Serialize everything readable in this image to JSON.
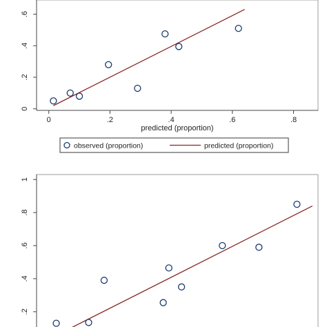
{
  "chart_data": [
    {
      "type": "scatter",
      "xlabel": "predicted (proportion)",
      "ylabel": "",
      "xlim": [
        -0.04,
        0.88
      ],
      "ylim": [
        -0.01,
        0.69
      ],
      "xticks": [
        0,
        0.2,
        0.4,
        0.6,
        0.8
      ],
      "xtick_labels": [
        "0",
        ".2",
        ".4",
        ".6",
        ".8"
      ],
      "yticks": [
        0,
        0.2,
        0.4,
        0.6
      ],
      "ytick_labels": [
        "0",
        ".2",
        ".4",
        ".6"
      ],
      "grid": false,
      "series": [
        {
          "name": "observed (proportion)",
          "kind": "scatter",
          "marker": "hollow-circle",
          "color": "#1a3a6b",
          "x": [
            0.015,
            0.07,
            0.1,
            0.195,
            0.29,
            0.38,
            0.425,
            0.62
          ],
          "y": [
            0.05,
            0.1,
            0.08,
            0.28,
            0.13,
            0.475,
            0.395,
            0.51
          ]
        },
        {
          "name": "predicted (proportion)",
          "kind": "line",
          "color": "#8b2323",
          "x": [
            0.015,
            0.64
          ],
          "y": [
            0.02,
            0.63
          ]
        }
      ],
      "legend": {
        "placement": "bottom",
        "entries": [
          "observed (proportion)",
          "predicted (proportion)"
        ]
      }
    },
    {
      "type": "scatter",
      "xlabel": "",
      "ylabel": "",
      "xlim": [
        0.0,
        1.0
      ],
      "ylim": [
        0.07,
        1.03
      ],
      "yticks": [
        0.2,
        0.4,
        0.6,
        0.8,
        1.0
      ],
      "ytick_labels": [
        ".2",
        ".4",
        ".6",
        ".8",
        "1"
      ],
      "grid": false,
      "series": [
        {
          "name": "observed (proportion)",
          "kind": "scatter",
          "marker": "hollow-circle",
          "color": "#1a3a6b",
          "x": [
            0.07,
            0.185,
            0.24,
            0.45,
            0.47,
            0.515,
            0.66,
            0.79,
            0.925
          ],
          "y": [
            0.13,
            0.135,
            0.39,
            0.255,
            0.465,
            0.35,
            0.6,
            0.59,
            0.85
          ]
        },
        {
          "name": "predicted (proportion)",
          "kind": "line",
          "color": "#8b2323",
          "x": [
            0.12,
            0.98
          ],
          "y": [
            0.1,
            0.84
          ]
        }
      ]
    }
  ]
}
